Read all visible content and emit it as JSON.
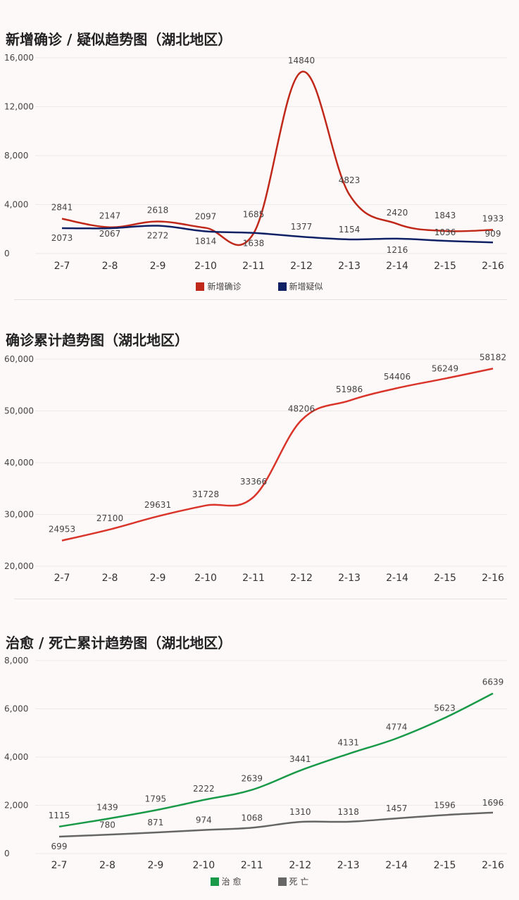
{
  "chart_data": [
    {
      "type": "line",
      "title": "新增确诊 / 疑似趋势图（湖北地区）",
      "categories": [
        "2-7",
        "2-8",
        "2-9",
        "2-10",
        "2-11",
        "2-12",
        "2-13",
        "2-14",
        "2-15",
        "2-16"
      ],
      "yticks": [
        "0",
        "4,000",
        "8,000",
        "12,000",
        "16,000"
      ],
      "ylim": [
        0,
        16000
      ],
      "series": [
        {
          "name": "新增确诊",
          "color": "#c0291a",
          "values": [
            2841,
            2147,
            2618,
            2097,
            1638,
            14840,
            4823,
            2420,
            1843,
            1933
          ]
        },
        {
          "name": "新增疑似",
          "color": "#0f2164",
          "values": [
            2073,
            2067,
            2272,
            1814,
            1685,
            1377,
            1154,
            1216,
            1036,
            909
          ]
        }
      ],
      "legend": "bottom"
    },
    {
      "type": "line",
      "title": "确诊累计趋势图（湖北地区）",
      "categories": [
        "2-7",
        "2-8",
        "2-9",
        "2-10",
        "2-11",
        "2-12",
        "2-13",
        "2-14",
        "2-15",
        "2-16"
      ],
      "yticks": [
        "20,000",
        "30,000",
        "40,000",
        "50,000",
        "60,000"
      ],
      "ylim": [
        20000,
        60000
      ],
      "series": [
        {
          "color": "#d9352a",
          "values": [
            24953,
            27100,
            29631,
            31728,
            33366,
            48206,
            51986,
            54406,
            56249,
            58182
          ]
        }
      ]
    },
    {
      "type": "line",
      "title": "治愈 / 死亡累计趋势图（湖北地区）",
      "categories": [
        "2-7",
        "2-8",
        "2-9",
        "2-10",
        "2-11",
        "2-12",
        "2-13",
        "2-14",
        "2-15",
        "2-16"
      ],
      "yticks": [
        "0",
        "2,000",
        "4,000",
        "6,000",
        "8,000"
      ],
      "ylim": [
        0,
        8000
      ],
      "series": [
        {
          "name": "治 愈",
          "color": "#1a9a48",
          "values": [
            1115,
            1439,
            1795,
            2222,
            2639,
            3441,
            4131,
            4774,
            5623,
            6639
          ]
        },
        {
          "name": "死 亡",
          "color": "#666666",
          "values": [
            699,
            780,
            871,
            974,
            1068,
            1310,
            1318,
            1457,
            1596,
            1696
          ]
        }
      ],
      "legend": "bottom"
    }
  ]
}
